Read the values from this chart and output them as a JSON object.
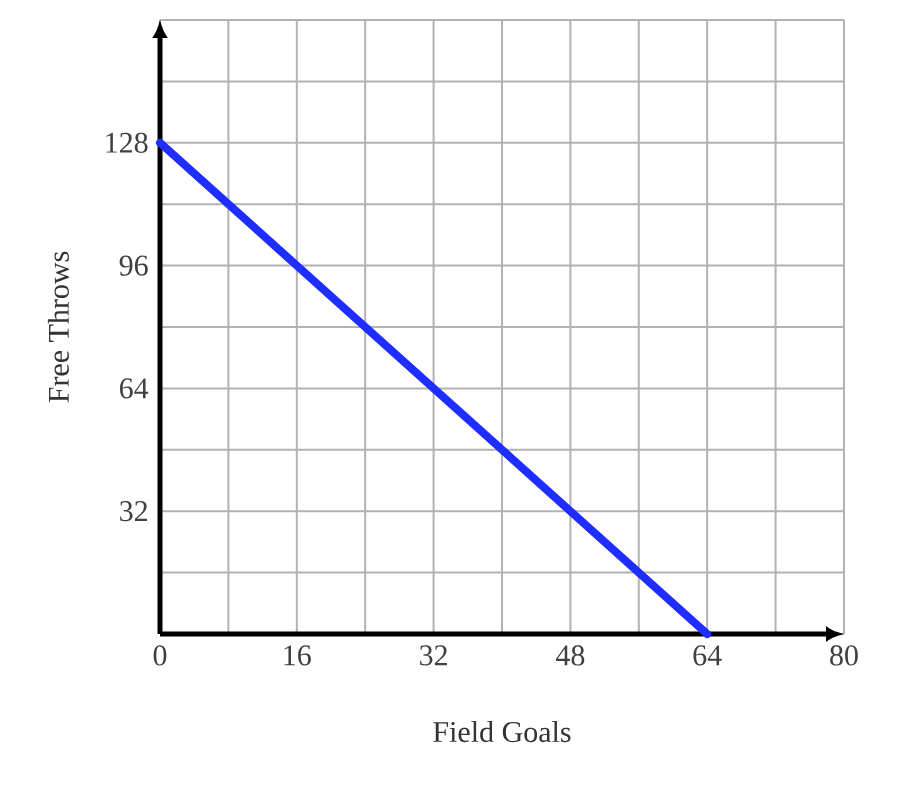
{
  "chart_data": {
    "type": "line",
    "xlabel": "Field Goals",
    "ylabel": "Free Throws",
    "x": [
      0,
      64
    ],
    "series": [
      {
        "color": "#1f2eff",
        "values": [
          128,
          0
        ]
      }
    ],
    "xlim": [
      0,
      80
    ],
    "ylim": [
      0,
      160
    ],
    "xticks": [
      0,
      {
        "value": 8,
        "label": null
      },
      16,
      {
        "value": 24,
        "label": null
      },
      32,
      {
        "value": 40,
        "label": null
      },
      48,
      {
        "value": 56,
        "label": null
      },
      64,
      {
        "value": 72,
        "label": null
      },
      80
    ],
    "yticks": [
      {
        "value": 0,
        "label": null
      },
      {
        "value": 16,
        "label": null
      },
      32,
      {
        "value": 48,
        "label": null
      },
      64,
      {
        "value": 80,
        "label": null
      },
      96,
      {
        "value": 112,
        "label": null
      },
      128,
      {
        "value": 144,
        "label": null
      },
      {
        "value": 160,
        "label": null
      }
    ],
    "grid": true,
    "marker": "none",
    "line_style": "solid"
  }
}
